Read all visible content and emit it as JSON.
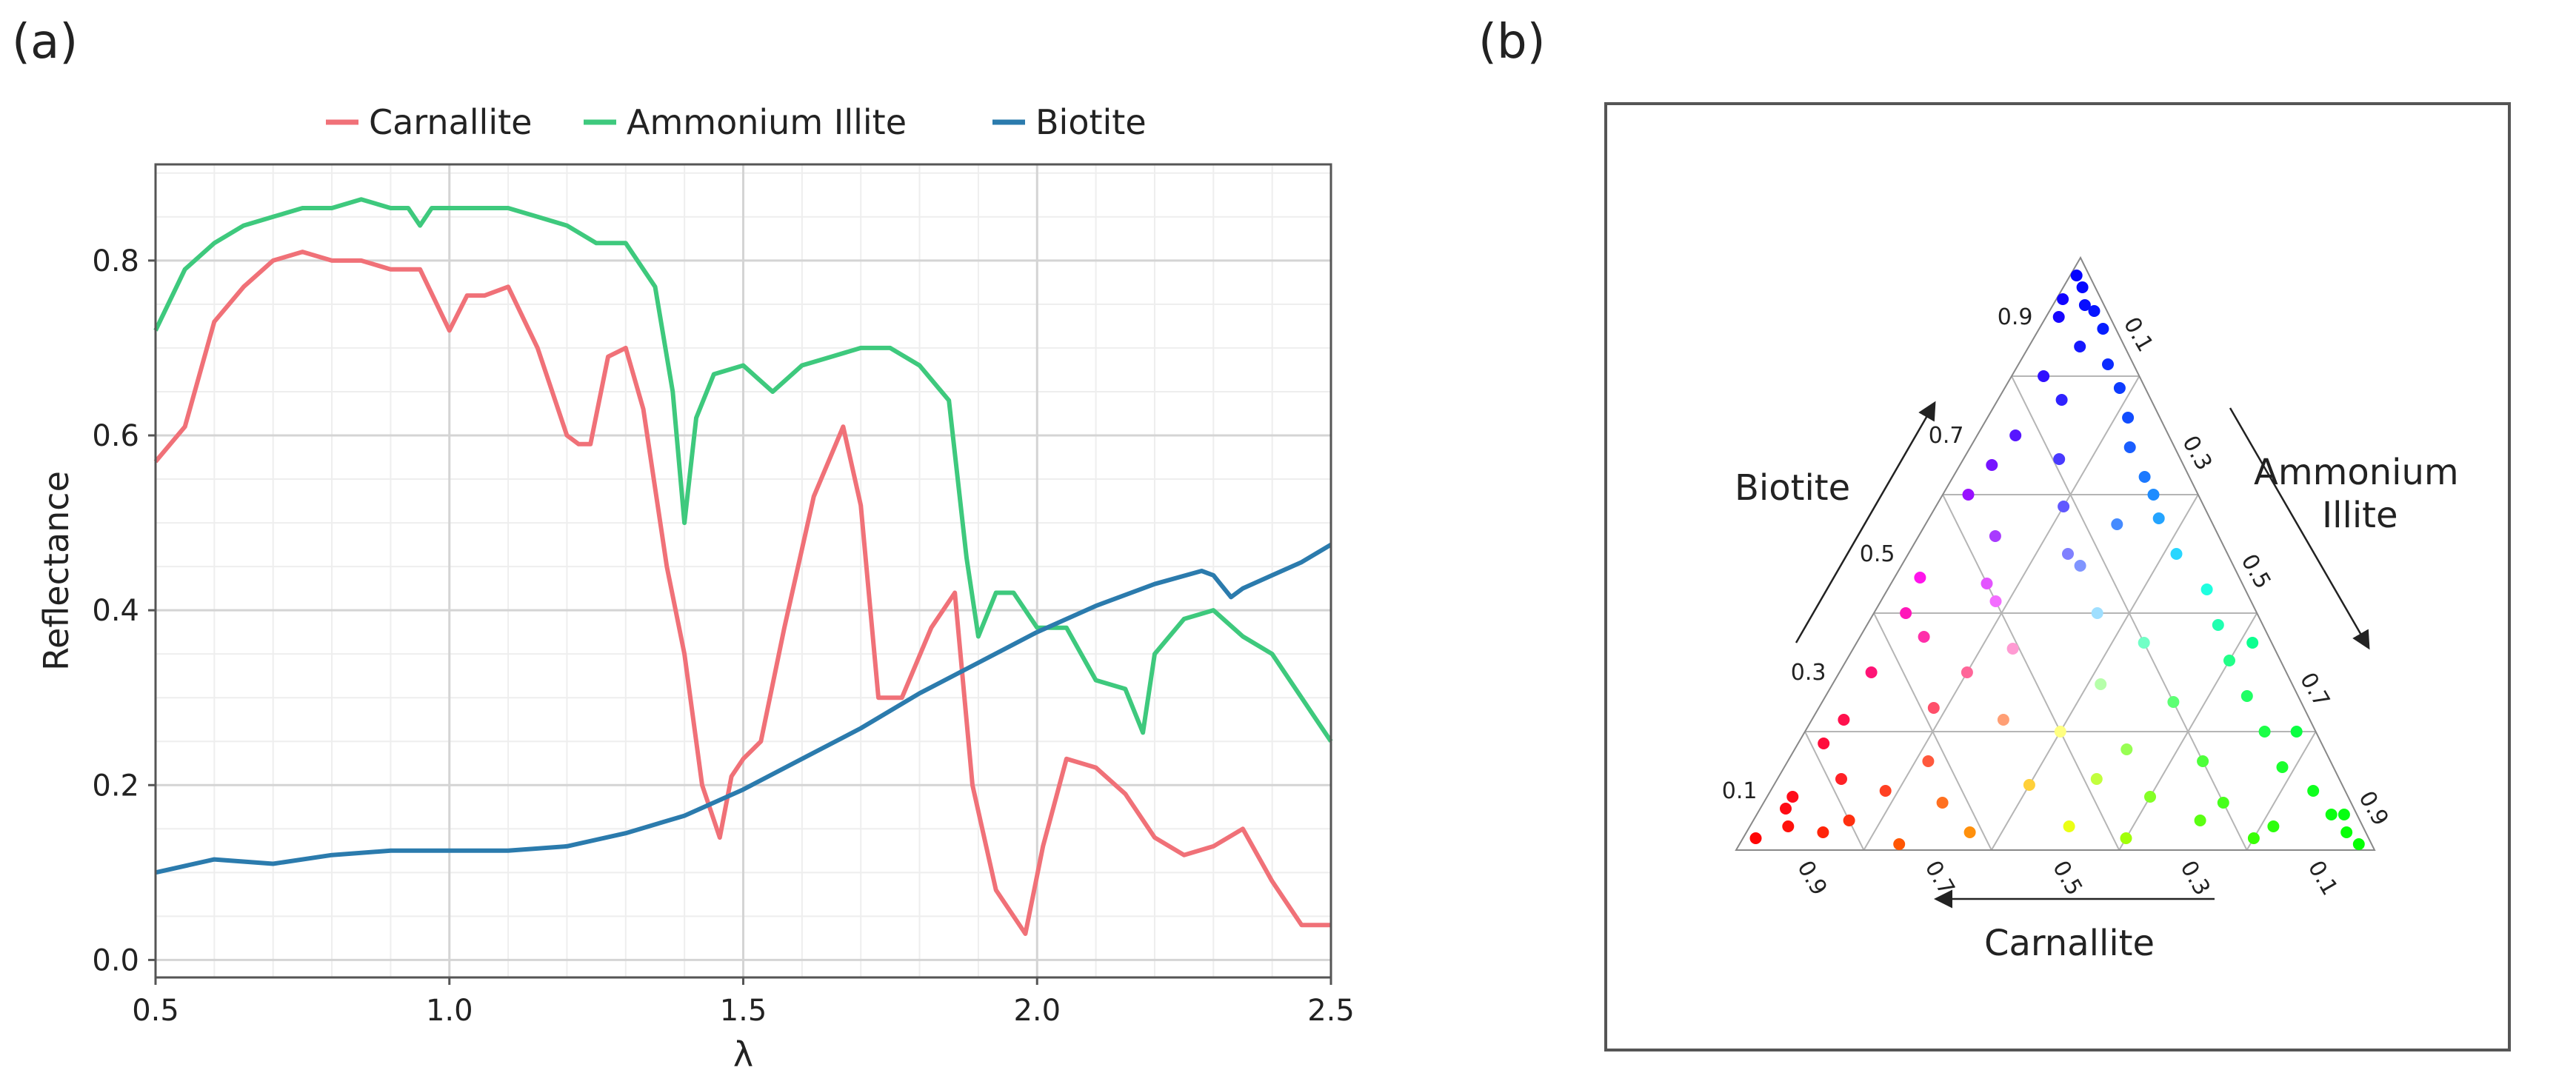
{
  "panels": {
    "a": "(a)",
    "b": "(b)"
  },
  "chart_data": [
    {
      "type": "line",
      "xlabel": "λ",
      "ylabel": "Reflectance",
      "xlim": [
        0.5,
        2.5
      ],
      "ylim": [
        -0.02,
        0.91
      ],
      "xticks": [
        "0.5",
        "1.0",
        "1.5",
        "2.0",
        "2.5"
      ],
      "yticks": [
        "0.0",
        "0.2",
        "0.4",
        "0.6",
        "0.8"
      ],
      "grid": true,
      "legend": "top",
      "series": [
        {
          "name": "Carnallite",
          "color": "#f07178",
          "x": [
            0.5,
            0.55,
            0.6,
            0.65,
            0.7,
            0.75,
            0.8,
            0.85,
            0.9,
            0.95,
            1.0,
            1.03,
            1.06,
            1.1,
            1.15,
            1.2,
            1.22,
            1.24,
            1.27,
            1.3,
            1.33,
            1.37,
            1.4,
            1.43,
            1.46,
            1.48,
            1.5,
            1.53,
            1.57,
            1.62,
            1.67,
            1.7,
            1.73,
            1.77,
            1.82,
            1.86,
            1.89,
            1.93,
            1.98,
            2.01,
            2.05,
            2.1,
            2.15,
            2.2,
            2.25,
            2.3,
            2.35,
            2.4,
            2.45,
            2.5
          ],
          "y": [
            0.57,
            0.61,
            0.73,
            0.77,
            0.8,
            0.81,
            0.8,
            0.8,
            0.79,
            0.79,
            0.72,
            0.76,
            0.76,
            0.77,
            0.7,
            0.6,
            0.59,
            0.59,
            0.69,
            0.7,
            0.63,
            0.45,
            0.35,
            0.2,
            0.14,
            0.21,
            0.23,
            0.25,
            0.38,
            0.53,
            0.61,
            0.52,
            0.3,
            0.3,
            0.38,
            0.42,
            0.2,
            0.08,
            0.03,
            0.13,
            0.23,
            0.22,
            0.19,
            0.14,
            0.12,
            0.13,
            0.15,
            0.09,
            0.04,
            0.04
          ]
        },
        {
          "name": "Ammonium Illite",
          "color": "#3ec97d",
          "x": [
            0.5,
            0.55,
            0.6,
            0.65,
            0.7,
            0.75,
            0.8,
            0.85,
            0.9,
            0.93,
            0.95,
            0.97,
            1.0,
            1.05,
            1.1,
            1.15,
            1.2,
            1.25,
            1.3,
            1.35,
            1.38,
            1.4,
            1.42,
            1.45,
            1.5,
            1.55,
            1.6,
            1.65,
            1.7,
            1.75,
            1.8,
            1.85,
            1.88,
            1.9,
            1.93,
            1.96,
            2.0,
            2.05,
            2.1,
            2.15,
            2.18,
            2.2,
            2.25,
            2.3,
            2.35,
            2.4,
            2.45,
            2.5
          ],
          "y": [
            0.72,
            0.79,
            0.82,
            0.84,
            0.85,
            0.86,
            0.86,
            0.87,
            0.86,
            0.86,
            0.84,
            0.86,
            0.86,
            0.86,
            0.86,
            0.85,
            0.84,
            0.82,
            0.82,
            0.77,
            0.65,
            0.5,
            0.62,
            0.67,
            0.68,
            0.65,
            0.68,
            0.69,
            0.7,
            0.7,
            0.68,
            0.64,
            0.46,
            0.37,
            0.42,
            0.42,
            0.38,
            0.38,
            0.32,
            0.31,
            0.26,
            0.35,
            0.39,
            0.4,
            0.37,
            0.35,
            0.3,
            0.25
          ]
        },
        {
          "name": "Biotite",
          "color": "#2b7bad",
          "x": [
            0.5,
            0.6,
            0.7,
            0.8,
            0.9,
            1.0,
            1.1,
            1.2,
            1.3,
            1.4,
            1.5,
            1.6,
            1.7,
            1.8,
            1.9,
            2.0,
            2.1,
            2.2,
            2.28,
            2.3,
            2.33,
            2.35,
            2.4,
            2.45,
            2.5
          ],
          "y": [
            0.1,
            0.115,
            0.11,
            0.12,
            0.125,
            0.125,
            0.125,
            0.13,
            0.145,
            0.165,
            0.195,
            0.23,
            0.265,
            0.305,
            0.34,
            0.375,
            0.405,
            0.43,
            0.445,
            0.44,
            0.415,
            0.425,
            0.44,
            0.455,
            0.475
          ]
        }
      ]
    },
    {
      "type": "scatter",
      "subtype": "ternary",
      "axes": {
        "left": "Biotite",
        "right_line1": "Ammonium",
        "right_line2": "Illite",
        "bottom": "Carnallite"
      },
      "ticks": [
        "0.1",
        "0.3",
        "0.5",
        "0.7",
        "0.9"
      ],
      "vertex_colors": {
        "top": "#0000ff",
        "bottom_right": "#00ff00",
        "bottom_left": "#ff0000"
      },
      "points": [
        [
          0.95,
          0.03,
          0.02
        ],
        [
          0.92,
          0.05,
          0.03
        ],
        [
          0.9,
          0.02,
          0.08
        ],
        [
          0.88,
          0.1,
          0.02
        ],
        [
          0.85,
          0.08,
          0.07
        ],
        [
          0.82,
          0.14,
          0.04
        ],
        [
          0.8,
          0.05,
          0.15
        ],
        [
          0.78,
          0.18,
          0.04
        ],
        [
          0.76,
          0.1,
          0.14
        ],
        [
          0.73,
          0.22,
          0.05
        ],
        [
          0.7,
          0.06,
          0.24
        ],
        [
          0.68,
          0.25,
          0.07
        ],
        [
          0.66,
          0.15,
          0.19
        ],
        [
          0.63,
          0.3,
          0.07
        ],
        [
          0.6,
          0.04,
          0.36
        ],
        [
          0.58,
          0.2,
          0.22
        ],
        [
          0.56,
          0.36,
          0.08
        ],
        [
          0.53,
          0.12,
          0.35
        ],
        [
          0.5,
          0.42,
          0.08
        ],
        [
          0.48,
          0.28,
          0.24
        ],
        [
          0.46,
          0.04,
          0.5
        ],
        [
          0.44,
          0.5,
          0.06
        ],
        [
          0.42,
          0.18,
          0.4
        ],
        [
          0.4,
          0.35,
          0.25
        ],
        [
          0.38,
          0.55,
          0.07
        ],
        [
          0.36,
          0.1,
          0.54
        ],
        [
          0.34,
          0.25,
          0.41
        ],
        [
          0.32,
          0.6,
          0.08
        ],
        [
          0.3,
          0.05,
          0.65
        ],
        [
          0.28,
          0.42,
          0.3
        ],
        [
          0.26,
          0.66,
          0.08
        ],
        [
          0.24,
          0.18,
          0.58
        ],
        [
          0.22,
          0.3,
          0.48
        ],
        [
          0.2,
          0.72,
          0.08
        ],
        [
          0.18,
          0.04,
          0.78
        ],
        [
          0.17,
          0.52,
          0.31
        ],
        [
          0.15,
          0.22,
          0.63
        ],
        [
          0.14,
          0.78,
          0.08
        ],
        [
          0.12,
          0.1,
          0.78
        ],
        [
          0.11,
          0.4,
          0.49
        ],
        [
          0.1,
          0.85,
          0.05
        ],
        [
          0.09,
          0.6,
          0.31
        ],
        [
          0.08,
          0.28,
          0.64
        ],
        [
          0.07,
          0.04,
          0.89
        ],
        [
          0.06,
          0.9,
          0.04
        ],
        [
          0.05,
          0.7,
          0.25
        ],
        [
          0.05,
          0.15,
          0.8
        ],
        [
          0.04,
          0.5,
          0.46
        ],
        [
          0.03,
          0.94,
          0.03
        ],
        [
          0.03,
          0.35,
          0.62
        ],
        [
          0.02,
          0.8,
          0.18
        ],
        [
          0.02,
          0.02,
          0.96
        ],
        [
          0.02,
          0.6,
          0.38
        ],
        [
          0.01,
          0.25,
          0.74
        ],
        [
          0.01,
          0.97,
          0.02
        ],
        [
          0.04,
          0.06,
          0.9
        ],
        [
          0.06,
          0.92,
          0.02
        ],
        [
          0.97,
          0.01,
          0.02
        ],
        [
          0.93,
          0.01,
          0.06
        ],
        [
          0.91,
          0.07,
          0.02
        ],
        [
          0.5,
          0.25,
          0.25
        ],
        [
          0.35,
          0.45,
          0.2
        ],
        [
          0.3,
          0.2,
          0.5
        ],
        [
          0.45,
          0.15,
          0.4
        ],
        [
          0.25,
          0.55,
          0.2
        ],
        [
          0.2,
          0.4,
          0.4
        ],
        [
          0.55,
          0.3,
          0.15
        ],
        [
          0.15,
          0.65,
          0.2
        ],
        [
          0.65,
          0.05,
          0.3
        ],
        [
          0.6,
          0.33,
          0.07
        ],
        [
          0.12,
          0.5,
          0.38
        ],
        [
          0.08,
          0.72,
          0.2
        ],
        [
          0.1,
          0.18,
          0.72
        ],
        [
          0.04,
          0.82,
          0.14
        ],
        [
          0.03,
          0.12,
          0.85
        ],
        [
          0.4,
          0.05,
          0.55
        ],
        [
          0.35,
          0.62,
          0.03
        ],
        [
          0.22,
          0.05,
          0.73
        ],
        [
          0.2,
          0.77,
          0.03
        ],
        [
          0.09,
          0.04,
          0.87
        ]
      ]
    }
  ]
}
